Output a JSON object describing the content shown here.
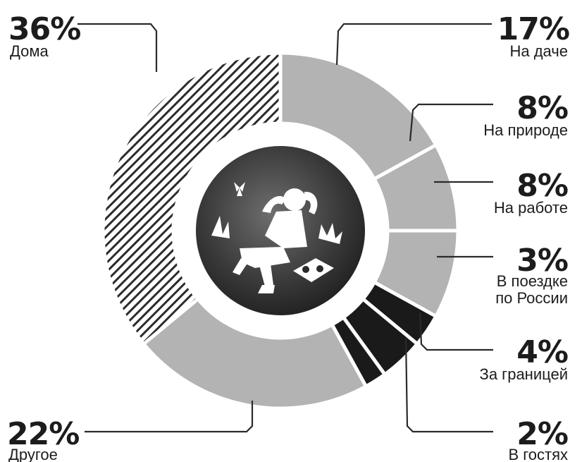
{
  "chart_data": {
    "type": "pie",
    "style": "donut",
    "slices": [
      {
        "label": "На даче",
        "value": 17,
        "value_label": "17%",
        "fill": "#b3b3b3",
        "pattern": "solid"
      },
      {
        "label": "На природе",
        "value": 8,
        "value_label": "8%",
        "fill": "#b3b3b3",
        "pattern": "solid"
      },
      {
        "label": "На работе",
        "value": 8,
        "value_label": "8%",
        "fill": "#b3b3b3",
        "pattern": "solid"
      },
      {
        "label": "В поездке по России",
        "label_lines": [
          "В поездке",
          "по России"
        ],
        "value": 3,
        "value_label": "3%",
        "fill": "#1a1a1a",
        "pattern": "solid"
      },
      {
        "label": "За границей",
        "value": 4,
        "value_label": "4%",
        "fill": "#1a1a1a",
        "pattern": "solid"
      },
      {
        "label": "В гостях",
        "value": 2,
        "value_label": "2%",
        "fill": "#1a1a1a",
        "pattern": "solid"
      },
      {
        "label": "Другое",
        "value": 22,
        "value_label": "22%",
        "fill": "#b3b3b3",
        "pattern": "solid"
      },
      {
        "label": "Дома",
        "value": 36,
        "value_label": "36%",
        "fill": "#ffffff",
        "pattern": "hatched"
      }
    ],
    "legend": "none"
  },
  "colors": {
    "dark": "#1a1a1a",
    "light": "#b3b3b3",
    "center": "#3a3a3a",
    "text": "#1c1c1c"
  },
  "center_icon": "person-relaxing-icon"
}
